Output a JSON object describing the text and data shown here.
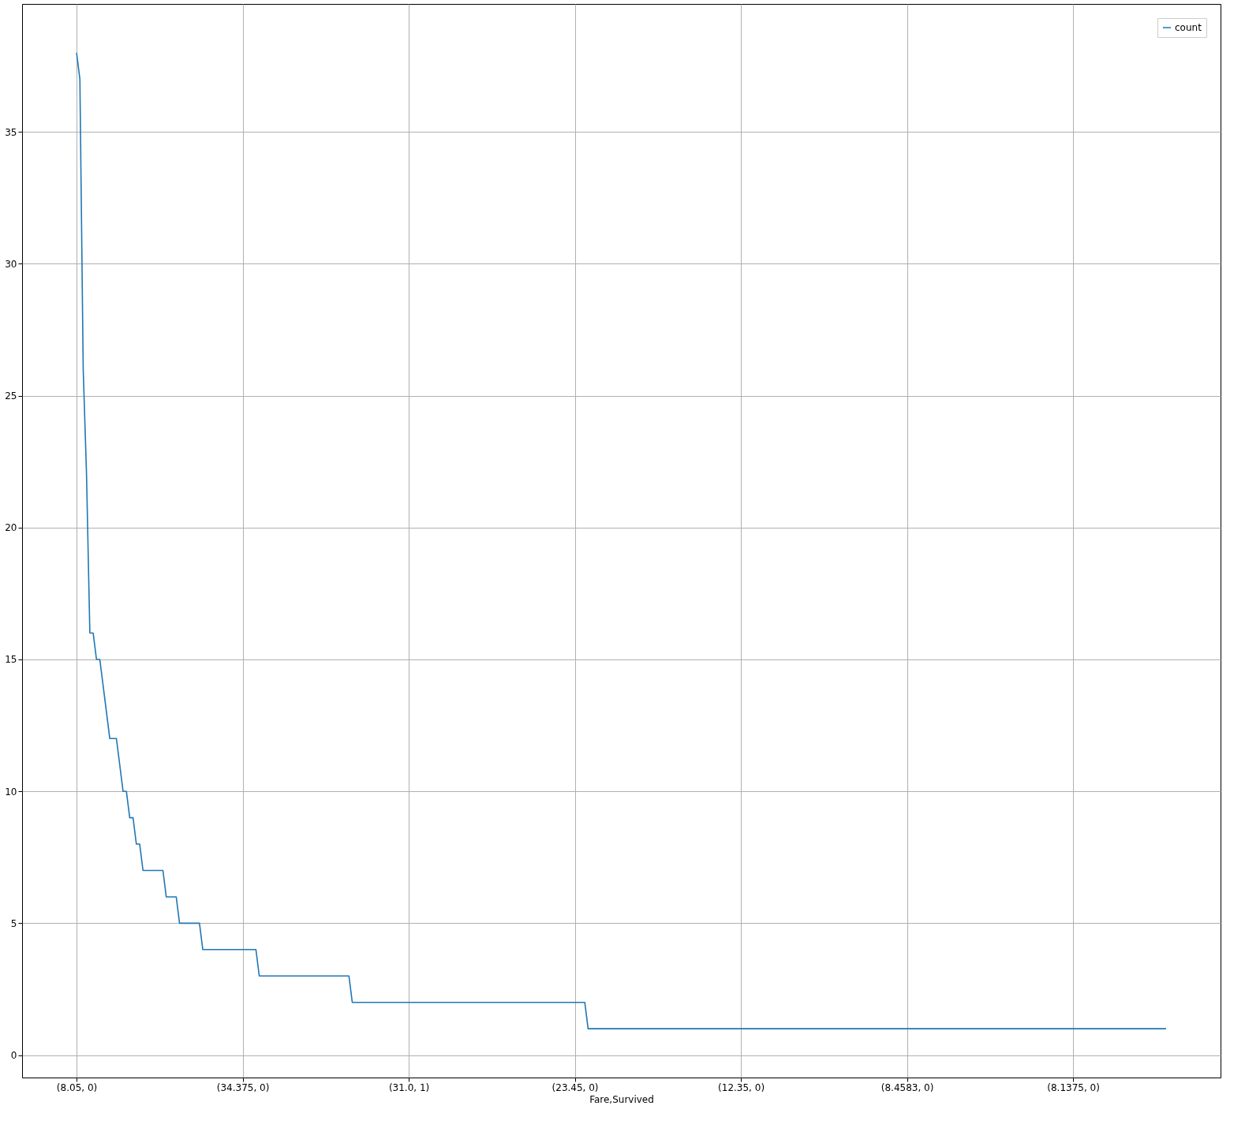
{
  "chart_data": {
    "type": "line",
    "xlabel": "Fare,Survived",
    "categories": [
      "(8.05, 0)",
      null,
      null,
      null,
      null,
      null,
      null,
      null,
      null,
      null,
      null,
      null,
      null,
      null,
      null,
      null,
      null,
      null,
      null,
      null,
      null,
      null,
      null,
      null,
      null,
      null,
      null,
      null,
      null,
      null,
      null,
      null,
      null,
      null,
      null,
      null,
      null,
      null,
      null,
      null,
      null,
      null,
      null,
      null,
      null,
      null,
      null,
      null,
      null,
      null,
      "(34.375, 0)",
      null,
      null,
      null,
      null,
      null,
      null,
      null,
      null,
      null,
      null,
      null,
      null,
      null,
      null,
      null,
      null,
      null,
      null,
      null,
      null,
      null,
      null,
      null,
      null,
      null,
      null,
      null,
      null,
      null,
      null,
      null,
      null,
      null,
      null,
      null,
      null,
      null,
      null,
      null,
      null,
      null,
      null,
      null,
      null,
      null,
      null,
      null,
      null,
      null,
      "(31.0, 1)",
      null,
      null,
      null,
      null,
      null,
      null,
      null,
      null,
      null,
      null,
      null,
      null,
      null,
      null,
      null,
      null,
      null,
      null,
      null,
      null,
      null,
      null,
      null,
      null,
      null,
      null,
      null,
      null,
      null,
      null,
      null,
      null,
      null,
      null,
      null,
      null,
      null,
      null,
      null,
      null,
      null,
      null,
      null,
      null,
      null,
      null,
      null,
      null,
      null,
      "(23.45, 0)",
      null,
      null,
      null,
      null,
      null,
      null,
      null,
      null,
      null,
      null,
      null,
      null,
      null,
      null,
      null,
      null,
      null,
      null,
      null,
      null,
      null,
      null,
      null,
      null,
      null,
      null,
      null,
      null,
      null,
      null,
      null,
      null,
      null,
      null,
      null,
      null,
      null,
      null,
      null,
      null,
      null,
      null,
      null,
      null,
      null,
      null,
      null,
      null,
      null,
      "(12.35, 0)",
      null,
      null,
      null,
      null,
      null,
      null,
      null,
      null,
      null,
      null,
      null,
      null,
      null,
      null,
      null,
      null,
      null,
      null,
      null,
      null,
      null,
      null,
      null,
      null,
      null,
      null,
      null,
      null,
      null,
      null,
      null,
      null,
      null,
      null,
      null,
      null,
      null,
      null,
      null,
      null,
      null,
      null,
      null,
      null,
      null,
      null,
      null,
      null,
      null,
      "(8.4583, 0)",
      null,
      null,
      null,
      null,
      null,
      null,
      null,
      null,
      null,
      null,
      null,
      null,
      null,
      null,
      null,
      null,
      null,
      null,
      null,
      null,
      null,
      null,
      null,
      null,
      null,
      null,
      null,
      null,
      null,
      null,
      null,
      null,
      null,
      null,
      null,
      null,
      null,
      null,
      null,
      null,
      null,
      null,
      null,
      null,
      null,
      null,
      null,
      null,
      null,
      "(8.1375, 0)",
      null,
      null,
      null,
      null,
      null,
      null,
      null,
      null,
      null,
      null,
      null,
      null,
      null,
      null,
      null,
      null,
      null,
      null,
      null,
      null,
      null,
      null,
      null,
      null,
      null,
      null,
      null,
      null
    ],
    "series": [
      {
        "name": "count",
        "color": "#1f77b4",
        "values": [
          38,
          37,
          26,
          22,
          16,
          16,
          15,
          15,
          14,
          13,
          12,
          12,
          12,
          11,
          10,
          10,
          9,
          9,
          8,
          8,
          7,
          7,
          7,
          7,
          7,
          7,
          7,
          6,
          6,
          6,
          6,
          5,
          5,
          5,
          5,
          5,
          5,
          5,
          4,
          4,
          4,
          4,
          4,
          4,
          4,
          4,
          4,
          4,
          4,
          4,
          4,
          4,
          4,
          4,
          4,
          3,
          3,
          3,
          3,
          3,
          3,
          3,
          3,
          3,
          3,
          3,
          3,
          3,
          3,
          3,
          3,
          3,
          3,
          3,
          3,
          3,
          3,
          3,
          3,
          3,
          3,
          3,
          3,
          2,
          2,
          2,
          2,
          2,
          2,
          2,
          2,
          2,
          2,
          2,
          2,
          2,
          2,
          2,
          2,
          2,
          2,
          2,
          2,
          2,
          2,
          2,
          2,
          2,
          2,
          2,
          2,
          2,
          2,
          2,
          2,
          2,
          2,
          2,
          2,
          2,
          2,
          2,
          2,
          2,
          2,
          2,
          2,
          2,
          2,
          2,
          2,
          2,
          2,
          2,
          2,
          2,
          2,
          2,
          2,
          2,
          2,
          2,
          2,
          2,
          2,
          2,
          2,
          2,
          2,
          2,
          2,
          2,
          2,
          2,
          1,
          1,
          1,
          1,
          1,
          1,
          1,
          1,
          1,
          1,
          1,
          1,
          1,
          1,
          1,
          1,
          1,
          1,
          1,
          1,
          1,
          1,
          1,
          1,
          1,
          1,
          1,
          1,
          1,
          1,
          1,
          1,
          1,
          1,
          1,
          1,
          1,
          1,
          1,
          1,
          1,
          1,
          1,
          1,
          1,
          1,
          1,
          1,
          1,
          1,
          1,
          1,
          1,
          1,
          1,
          1,
          1,
          1,
          1,
          1,
          1,
          1,
          1,
          1,
          1,
          1,
          1,
          1,
          1,
          1,
          1,
          1,
          1,
          1,
          1,
          1,
          1,
          1,
          1,
          1,
          1,
          1,
          1,
          1,
          1,
          1,
          1,
          1,
          1,
          1,
          1,
          1,
          1,
          1,
          1,
          1,
          1,
          1,
          1,
          1,
          1,
          1,
          1,
          1,
          1,
          1,
          1,
          1,
          1,
          1,
          1,
          1,
          1,
          1,
          1,
          1,
          1,
          1,
          1,
          1,
          1,
          1,
          1,
          1,
          1,
          1,
          1,
          1,
          1,
          1,
          1,
          1,
          1,
          1,
          1,
          1,
          1,
          1,
          1,
          1,
          1,
          1,
          1,
          1,
          1,
          1,
          1,
          1,
          1,
          1,
          1,
          1,
          1,
          1,
          1,
          1,
          1,
          1,
          1,
          1,
          1,
          1,
          1,
          1,
          1,
          1,
          1,
          1,
          1,
          1,
          1,
          1,
          1,
          1,
          1
        ]
      }
    ],
    "ylim": [
      -0.85,
      39.85
    ],
    "yticks": [
      0,
      5,
      10,
      15,
      20,
      25,
      30,
      35
    ],
    "grid": true,
    "legend": "top right"
  }
}
